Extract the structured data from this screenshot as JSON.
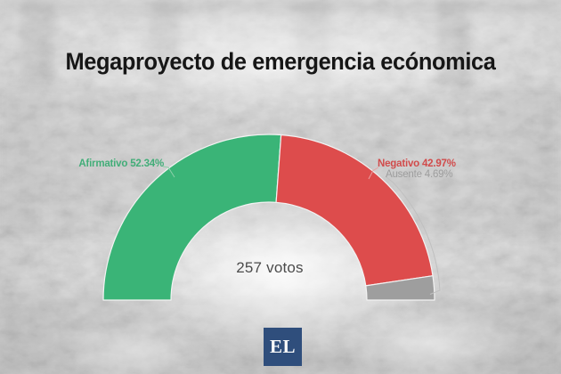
{
  "header": {
    "title": "Megaproyecto de emergencia ecónomica"
  },
  "chart_data": {
    "type": "pie",
    "variant": "semicircle-donut-gauge",
    "title": "Megaproyecto de emergencia ecónomica",
    "start_angle_deg": 180,
    "span_deg": 180,
    "grid": false,
    "legend_position": "data-labels",
    "center_label": "257 votos",
    "total_votes": 257,
    "segments": [
      {
        "label": "Afirmativo",
        "value_pct": 52.34,
        "display": "Afirmativo 52.34%",
        "color": "#3ab477",
        "label_color": "#42ad78"
      },
      {
        "label": "Negativo",
        "value_pct": 42.97,
        "display": "Negativo 42.97%",
        "color": "#dd4c4c",
        "label_color": "#d14b4b"
      },
      {
        "label": "Ausente",
        "value_pct": 4.69,
        "display": "Ausente 4.69%",
        "color": "#9e9e9e",
        "label_color": "#9d9d9d"
      }
    ]
  },
  "footer": {
    "logo_text": "EL",
    "logo_bg_color": "#2f4e7c",
    "logo_text_color": "#fbfbfb"
  },
  "background": {
    "type": "photo",
    "description": "Faded black-and-white photo of a congress chamber in session"
  }
}
